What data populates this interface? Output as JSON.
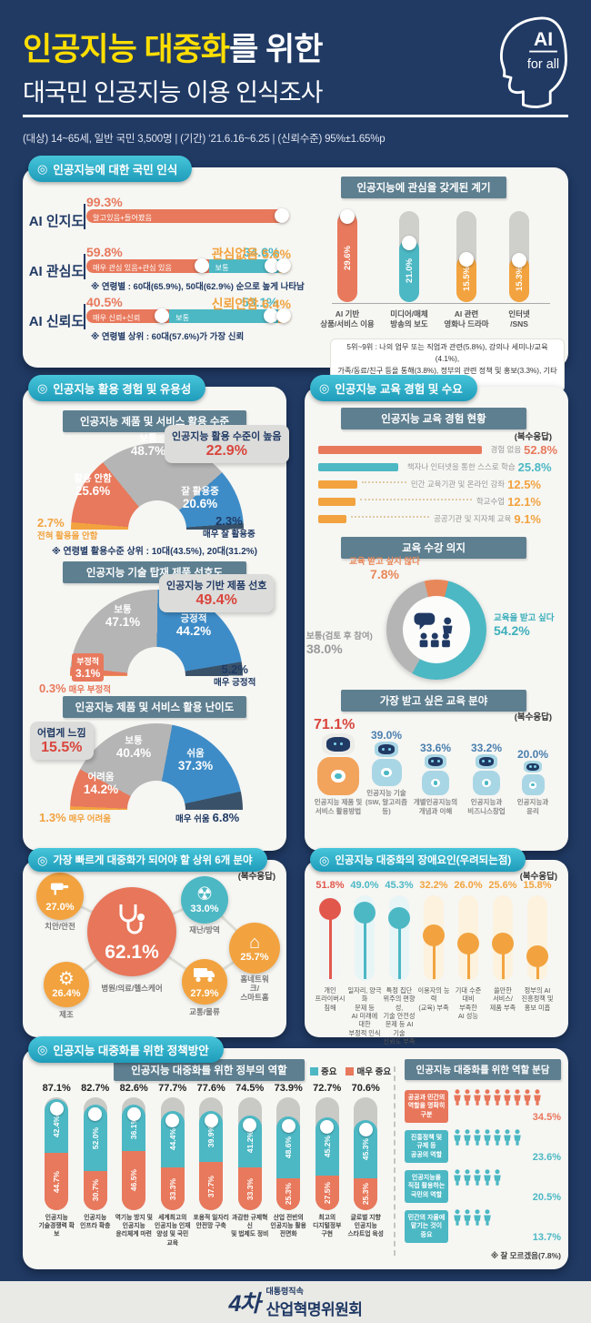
{
  "header": {
    "title_highlight": "인공지능 대중화",
    "title_suffix": "를 위한",
    "subtitle": "대국민 인공지능 이용 인식조사",
    "badge": {
      "line1": "AI",
      "line2": "for all"
    },
    "meta": "(대상) 14~65세, 일반 국민 3,500명  |  (기간) ‘21.6.16~6.25   |  (신뢰수준) 95%±1.65%p"
  },
  "sections": {
    "s1": "인공지능에 대한 국민 인식",
    "s2": "인공지능 활용 경험 및 유용성",
    "s3": "인공지능 교육 경험 및 수요",
    "s4": "가장 빠르게 대중화가 되어야 할 상위 6개 분야",
    "s5": "인공지능 대중화의 장애요인(우려되는점)",
    "s6": "인공지능 대중화를 위한 정책방안"
  },
  "labels": {
    "multi_response": "(복수응답)"
  },
  "chart_data": [
    {
      "id": "awareness",
      "type": "bar",
      "title": "인공지능에 대한 국민 인식",
      "rows": [
        {
          "label": "AI 인지도",
          "note": "",
          "segments": [
            {
              "label": "알고있음+들어봤음",
              "value": 99.3,
              "value_label": "99.3%",
              "color": "orange"
            }
          ]
        },
        {
          "label": "AI 관심도",
          "note": "※ 연령별 : 60대(65.9%), 50대(62.9%) 순으로 높게 나타남",
          "segments": [
            {
              "label": "매우 관심 있음+관심 있음",
              "value": 59.8,
              "value_label": "59.8%",
              "color": "orange"
            },
            {
              "label": "보통",
              "value": 34.6,
              "value_label": "34.6%",
              "color": "teal"
            },
            {
              "label": "",
              "value": 5.6,
              "value_label": "관심없음 5.6%",
              "color": "yellow"
            }
          ]
        },
        {
          "label": "AI 신뢰도",
          "note": "※ 연령별 상위 : 60대(57.6%)가 가장 신뢰",
          "segments": [
            {
              "label": "매우 신뢰+신뢰",
              "value": 40.5,
              "value_label": "40.5%",
              "color": "orange"
            },
            {
              "label": "보통",
              "value": 53.1,
              "value_label": "53.1%",
              "color": "teal"
            },
            {
              "label": "",
              "value": 6.4,
              "value_label": "신뢰안함 6.4%",
              "color": "yellow"
            }
          ]
        }
      ]
    },
    {
      "id": "trigger",
      "type": "bar",
      "title": "인공지능에 관심을 갖게된 계기",
      "categories": [
        "AI 기반\n상품/서비스 이용",
        "미디어/매체\n방송의 보도",
        "AI 관련\n영화나 드라마",
        "인터넷\n/SNS"
      ],
      "values": [
        29.6,
        21.0,
        15.5,
        15.3
      ],
      "colors": [
        "orange",
        "teal",
        "yellow",
        "yellow"
      ],
      "footnote": "5위~9위 : 나의 업무 또는 직업과 관련(5.8%), 강의나 세미나/교육(4.1%),\n가족/동료/친구 등을 통해(3.8%), 정부의 관련 정책 및 홍보(3.3%), 기타(1.5%)"
    },
    {
      "id": "usage_level",
      "type": "pie",
      "title": "인공지능 제품 및 서비스 활용 수준",
      "items": [
        {
          "label": "전혀 활용을 안함",
          "pct": "2.7%",
          "value": 2.7
        },
        {
          "label": "활용 안함",
          "pct": "25.6%",
          "value": 25.6
        },
        {
          "label": "보통",
          "pct": "48.7%",
          "value": 48.7
        },
        {
          "label": "잘 활용중",
          "pct": "20.6%",
          "value": 20.6
        },
        {
          "label": "매우 잘 활용중",
          "pct": "2.3%",
          "value": 2.3
        }
      ],
      "callout": {
        "text": "인공지능 활용 수준이 높음",
        "pct": "22.9%"
      },
      "note": "※ 연령별 활용수준 상위 : 10대(43.5%), 20대(31.2%)"
    },
    {
      "id": "preference",
      "type": "pie",
      "title": "인공지능 기술 탑재 제품 선호도",
      "items": [
        {
          "label": "매우 부정적",
          "pct": "0.3%",
          "value": 0.3
        },
        {
          "label": "부정적",
          "pct": "3.1%",
          "value": 3.1
        },
        {
          "label": "보통",
          "pct": "47.1%",
          "value": 47.1
        },
        {
          "label": "긍정적",
          "pct": "44.2%",
          "value": 44.2
        },
        {
          "label": "매우 긍정적",
          "pct": "5.2%",
          "value": 5.2
        }
      ],
      "callout": {
        "text": "인공지능 기반 제품 선호",
        "pct": "49.4%"
      }
    },
    {
      "id": "difficulty",
      "type": "pie",
      "title": "인공지능 제품 및 서비스 활용 난이도",
      "items": [
        {
          "label": "매우 어려움",
          "pct": "1.3%",
          "value": 1.3
        },
        {
          "label": "어려움",
          "pct": "14.2%",
          "value": 14.2
        },
        {
          "label": "보통",
          "pct": "40.4%",
          "value": 40.4
        },
        {
          "label": "쉬움",
          "pct": "37.3%",
          "value": 37.3
        },
        {
          "label": "매우 쉬움",
          "pct": "6.8%",
          "value": 6.8
        }
      ],
      "callout": {
        "text": "어렵게 느낌",
        "pct": "15.5%"
      }
    },
    {
      "id": "edu_exp",
      "type": "bar",
      "title": "인공지능 교육 경험 현황",
      "subtitle": "(복수응답)",
      "categories": [
        "경험 없음",
        "책자나 인터넷을 통한 스스로 학습",
        "민간 교육기관 및 온라인 강좌",
        "학교수업",
        "공공기관 및 지자체 교육"
      ],
      "values": [
        52.8,
        25.8,
        12.5,
        12.1,
        9.1
      ],
      "colors": [
        "orange",
        "teal",
        "yellow",
        "yellow",
        "yellow"
      ]
    },
    {
      "id": "edu_will",
      "type": "pie",
      "title": "교육 수강 의지",
      "items": [
        {
          "label": "교육 받고 싶지 않다",
          "pct": "7.8%",
          "value": 7.8
        },
        {
          "label": "교육을 받고 싶다",
          "pct": "54.2%",
          "value": 54.2
        },
        {
          "label": "보통(검토 후 참여)",
          "pct": "38.0%",
          "value": 38.0
        }
      ]
    },
    {
      "id": "edu_fields",
      "type": "bar",
      "title": "가장 받고 싶은 교육 분야",
      "subtitle": "(복수응답)",
      "categories": [
        "인공지능 제품 및\n서비스 활용방법",
        "인공지능 기술\n(SW, 알고리즘 등)",
        "개별인공지능의\n개념과 이해",
        "인공지능과\n비즈니스창업",
        "인공지능과\n윤리"
      ],
      "values": [
        71.1,
        39.0,
        33.6,
        33.2,
        20.0
      ]
    },
    {
      "id": "domains",
      "type": "bar",
      "title": "가장 빠르게 대중화가 되어야 할 상위 6개 분야",
      "subtitle": "(복수응답)",
      "categories": [
        "치안/안전",
        "병원/의료/헬스케어",
        "재난/방역",
        "홈네트워크/\n스마트홈",
        "교통/물류",
        "제조"
      ],
      "values": [
        27.0,
        62.1,
        33.0,
        25.7,
        27.9,
        26.4
      ]
    },
    {
      "id": "obstacles",
      "type": "bar",
      "title": "인공지능 대중화의 장애요인(우려되는점)",
      "subtitle": "(복수응답)",
      "categories": [
        "개인\n프라이버시\n침해",
        "일자리, 양극화\n문제 등\nAI 미래에\n대한\n부정적 인식",
        "특정 집단\n위주의 편향성,\n기술 안전성\n문제 등 AI 기술\n신뢰도 부족",
        "이용자의 능력\n(교육) 부족",
        "기대 수준\n대비\n부족한\nAI 성능",
        "쓸만한\n서비스/\n제품 부족",
        "정부의 AI\n진흥정책 및\n홍보 미흡"
      ],
      "values": [
        51.8,
        49.0,
        45.3,
        32.2,
        26.0,
        25.6,
        15.8
      ]
    },
    {
      "id": "gov_roles",
      "type": "bar",
      "title": "인공지능 대중화를 위한 정부의 역할",
      "legend": [
        "중요",
        "매우 중요"
      ],
      "categories": [
        "인공지능\n기술경쟁력 확보",
        "인공지능\n인프라 확충",
        "역기능 방지 및\n인공지능\n윤리체계 마련",
        "세계최고의\n인공지능 인재\n양성 및 국민 교육",
        "포용적 일자리\n안전망 구축",
        "과감한 규제혁신\n및 법제도 정비",
        "산업 전반의\n인공지능 활용\n전면화",
        "최고의\n디지털정부\n구현",
        "글로벌 지향\n인공지능\n스타트업 육성"
      ],
      "totals": [
        87.1,
        82.7,
        82.6,
        77.7,
        77.6,
        74.5,
        73.9,
        72.7,
        70.6
      ],
      "series": [
        {
          "name": "중요",
          "values": [
            42.4,
            52.0,
            36.1,
            44.4,
            39.9,
            41.2,
            48.6,
            45.2,
            45.3
          ]
        },
        {
          "name": "매우 중요",
          "values": [
            44.7,
            30.7,
            46.5,
            33.3,
            37.7,
            33.3,
            25.3,
            27.5,
            25.3
          ]
        }
      ]
    },
    {
      "id": "role_share",
      "type": "bar",
      "title": "인공지능 대중화를 위한 역할 분담",
      "categories": [
        "공공과 민간의\n역할을 명확히\n구분",
        "진흥정책 및\n규제 등\n공공의 역할",
        "인공지능을\n직접 활용하는\n국민의 역할",
        "민간의 자율에\n맡기는 것이\n중요"
      ],
      "values": [
        34.5,
        23.6,
        20.5,
        13.7
      ],
      "note": "※ 잘 모르겠음(7.8%)"
    }
  ],
  "footer": {
    "logo": "4차",
    "affiliation": "대통령직속",
    "org": "산업혁명위원회"
  }
}
